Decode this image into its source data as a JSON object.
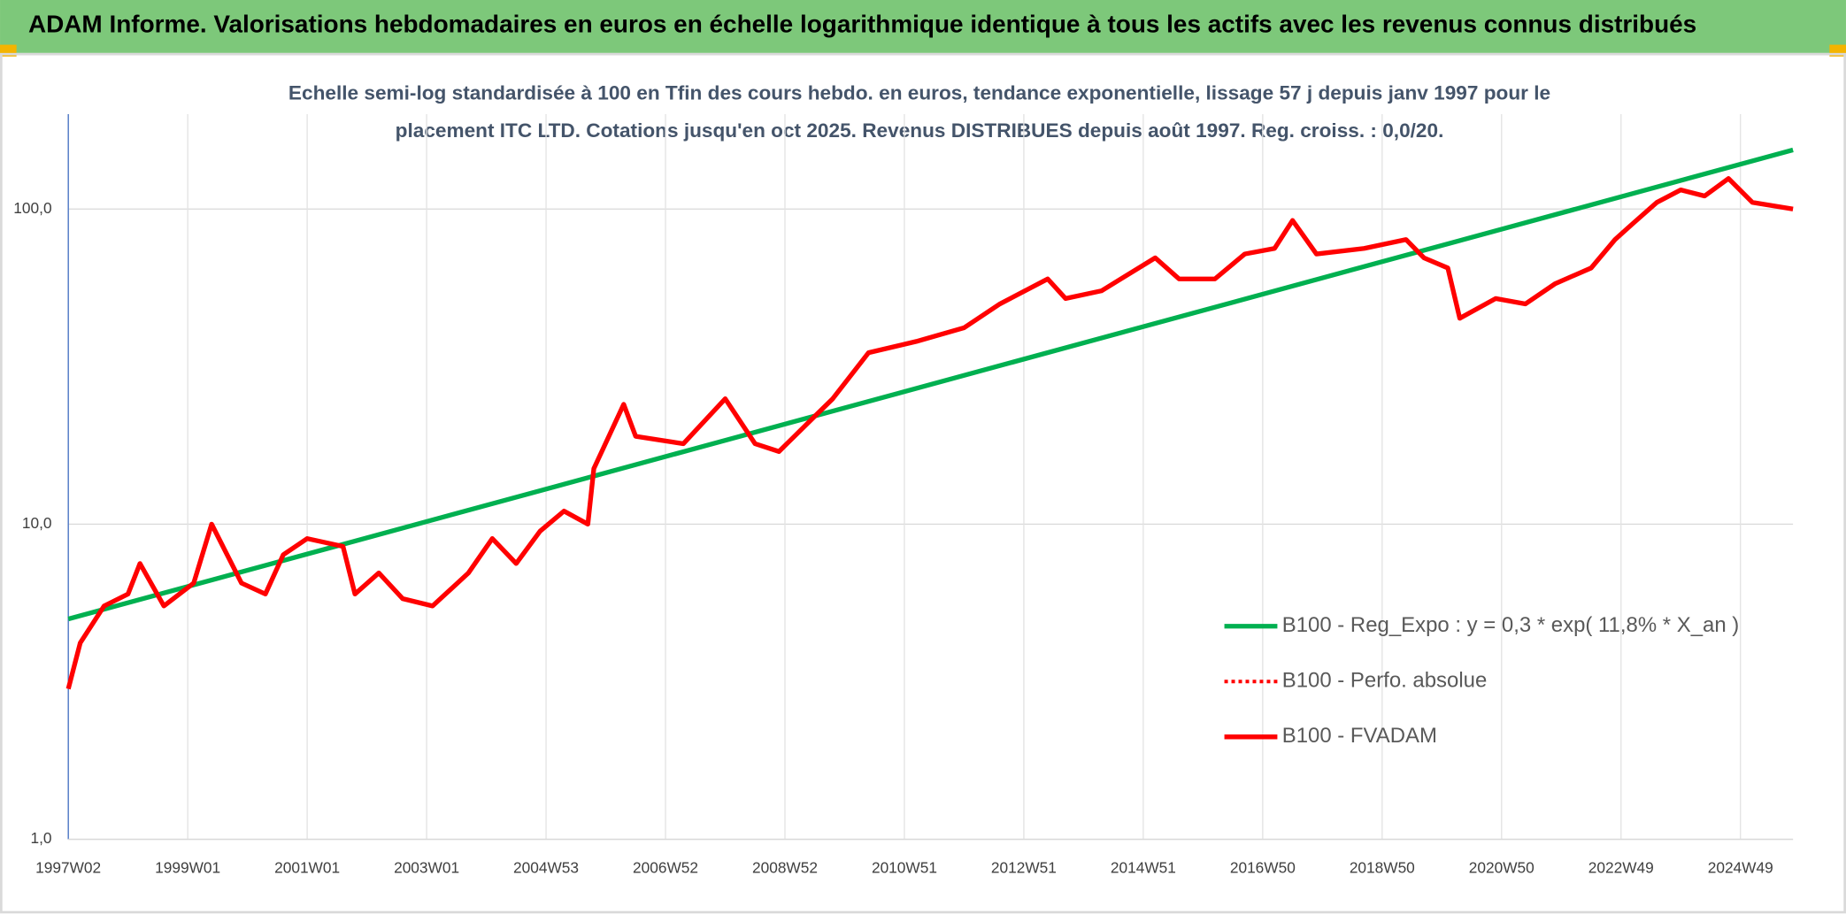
{
  "chart_data": {
    "type": "line",
    "title": "ADAM Informe. Valorisations hebdomadaires en euros en échelle logarithmique identique à tous les actifs avec les revenus connus distribués",
    "subtitle": [
      "Echelle semi-log standardisée à 100 en Tfin des cours hebdo. en euros, tendance exponentielle, lissage 57 j depuis janv 1997 pour le",
      "placement ITC LTD. Cotations jusqu'en oct 2025. Revenus DISTRIBUES depuis août 1997. Reg. croiss. : 0,0/20."
    ],
    "log_scale": true,
    "grid": true,
    "legend": "right",
    "xlim": [
      1997.0,
      2025.88
    ],
    "xticks": [
      {
        "value": 1997.0,
        "label": "1997W02"
      },
      {
        "value": 1999.0,
        "label": "1999W01"
      },
      {
        "value": 2001.0,
        "label": "2001W01"
      },
      {
        "value": 2003.0,
        "label": "2003W01"
      },
      {
        "value": 2005.0,
        "label": "2004W53"
      },
      {
        "value": 2007.0,
        "label": "2006W52"
      },
      {
        "value": 2009.0,
        "label": "2008W52"
      },
      {
        "value": 2011.0,
        "label": "2010W51"
      },
      {
        "value": 2013.0,
        "label": "2012W51"
      },
      {
        "value": 2015.0,
        "label": "2014W51"
      },
      {
        "value": 2017.0,
        "label": "2016W50"
      },
      {
        "value": 2019.0,
        "label": "2018W50"
      },
      {
        "value": 2021.0,
        "label": "2020W50"
      },
      {
        "value": 2023.0,
        "label": "2022W49"
      },
      {
        "value": 2025.0,
        "label": "2024W49"
      }
    ],
    "ylim": [
      1,
      200
    ],
    "yticks": [
      {
        "value": 1,
        "label": "1,0"
      },
      {
        "value": 10,
        "label": "10,0"
      },
      {
        "value": 100,
        "label": "100,0"
      }
    ],
    "series": [
      {
        "name": "B100 - Reg_Expo : y = 0,3 * exp( 11,8% *  X_an )",
        "color": "#00b050",
        "style": "solid",
        "x": [
          1997.0,
          2025.88
        ],
        "values": [
          5.0,
          154
        ]
      },
      {
        "name": "B100 - Perfo. absolue",
        "color": "#ff0000",
        "style": "dotted",
        "x": [],
        "values": []
      },
      {
        "name": "B100 - FVADAM",
        "color": "#ff0000",
        "style": "solid",
        "x": [
          1997.0,
          1997.2,
          1997.6,
          1998.0,
          1998.2,
          1998.6,
          1999.1,
          1999.4,
          1999.9,
          2000.3,
          2000.6,
          2001.0,
          2001.6,
          2001.8,
          2002.2,
          2002.6,
          2003.1,
          2003.7,
          2004.1,
          2004.5,
          2004.9,
          2005.3,
          2005.7,
          2005.8,
          2006.3,
          2006.5,
          2007.3,
          2008.0,
          2008.5,
          2008.9,
          2009.5,
          2009.8,
          2010.4,
          2011.2,
          2012.0,
          2012.6,
          2013.4,
          2013.7,
          2014.3,
          2015.2,
          2015.6,
          2016.2,
          2016.7,
          2017.2,
          2017.5,
          2017.9,
          2018.7,
          2019.4,
          2019.7,
          2020.1,
          2020.3,
          2020.9,
          2021.4,
          2021.9,
          2022.5,
          2022.9,
          2023.2,
          2023.6,
          2024.0,
          2024.4,
          2024.8,
          2025.2,
          2025.88
        ],
        "values": [
          3.0,
          4.2,
          5.5,
          6.0,
          7.5,
          5.5,
          6.5,
          10.0,
          6.5,
          6.0,
          8.0,
          9.0,
          8.5,
          6.0,
          7.0,
          5.8,
          5.5,
          7.0,
          9.0,
          7.5,
          9.5,
          11.0,
          10.0,
          15.0,
          24.0,
          19.0,
          18.0,
          25.0,
          18.0,
          17.0,
          22.0,
          25.0,
          35.0,
          38.0,
          42.0,
          50.0,
          60.0,
          52.0,
          55.0,
          70.0,
          60.0,
          60.0,
          72.0,
          75.0,
          92.0,
          72.0,
          75.0,
          80.0,
          70.0,
          65.0,
          45.0,
          52.0,
          50.0,
          58.0,
          65.0,
          80.0,
          90.0,
          105.0,
          115.0,
          110.0,
          125.0,
          105.0,
          100.0
        ]
      }
    ]
  }
}
